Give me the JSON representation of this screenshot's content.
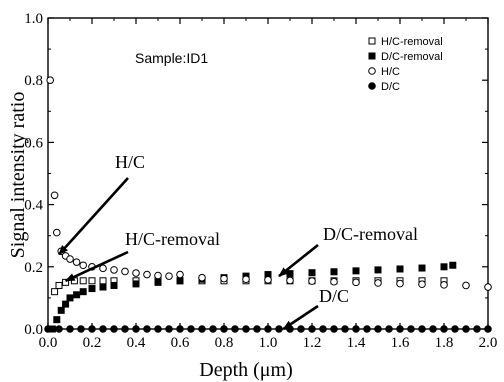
{
  "chart_data": {
    "type": "scatter",
    "xlabel": "Depth (μm)",
    "ylabel": "Signal intensity ratio",
    "xlim": [
      0.0,
      2.0
    ],
    "ylim": [
      0.0,
      1.0
    ],
    "xticks": [
      "0.0",
      "0.2",
      "0.4",
      "0.6",
      "0.8",
      "1.0",
      "1.2",
      "1.4",
      "1.6",
      "1.8",
      "2.0"
    ],
    "yticks": [
      "0.0",
      "0.2",
      "0.4",
      "0.6",
      "0.8",
      "1.0"
    ],
    "grid": false,
    "legend_position": "top-right",
    "sample_label": "Sample:ID1",
    "series": [
      {
        "name": "H/C-removal",
        "marker": "open-square",
        "x": [
          0.03,
          0.05,
          0.08,
          0.12,
          0.16,
          0.2,
          0.25,
          0.3,
          0.4,
          0.5,
          0.6,
          0.7,
          0.8,
          0.9,
          1.0,
          1.1,
          1.2,
          1.3,
          1.4,
          1.5,
          1.6,
          1.7,
          1.8
        ],
        "y": [
          0.12,
          0.14,
          0.15,
          0.155,
          0.155,
          0.155,
          0.155,
          0.155,
          0.155,
          0.155,
          0.155,
          0.155,
          0.155,
          0.155,
          0.155,
          0.155,
          0.155,
          0.155,
          0.155,
          0.155,
          0.155,
          0.155,
          0.155
        ]
      },
      {
        "name": "D/C-removal",
        "marker": "filled-square",
        "x": [
          0.02,
          0.04,
          0.06,
          0.08,
          0.1,
          0.13,
          0.16,
          0.2,
          0.25,
          0.3,
          0.4,
          0.5,
          0.6,
          0.7,
          0.8,
          0.9,
          1.0,
          1.1,
          1.2,
          1.3,
          1.4,
          1.5,
          1.6,
          1.7,
          1.8,
          1.84
        ],
        "y": [
          0.0,
          0.03,
          0.06,
          0.08,
          0.1,
          0.11,
          0.12,
          0.13,
          0.135,
          0.14,
          0.145,
          0.15,
          0.155,
          0.16,
          0.165,
          0.17,
          0.175,
          0.178,
          0.181,
          0.184,
          0.187,
          0.19,
          0.193,
          0.196,
          0.2,
          0.205
        ]
      },
      {
        "name": "H/C",
        "marker": "open-circle",
        "x": [
          0.01,
          0.03,
          0.04,
          0.06,
          0.08,
          0.1,
          0.13,
          0.16,
          0.2,
          0.25,
          0.3,
          0.35,
          0.4,
          0.45,
          0.5,
          0.55,
          0.6,
          0.7,
          0.8,
          0.9,
          1.0,
          1.1,
          1.2,
          1.3,
          1.4,
          1.5,
          1.6,
          1.7,
          1.8,
          1.9,
          2.0
        ],
        "y": [
          0.8,
          0.43,
          0.31,
          0.25,
          0.235,
          0.225,
          0.215,
          0.205,
          0.2,
          0.195,
          0.19,
          0.185,
          0.18,
          0.175,
          0.172,
          0.17,
          0.175,
          0.165,
          0.162,
          0.16,
          0.158,
          0.156,
          0.154,
          0.152,
          0.15,
          0.148,
          0.146,
          0.144,
          0.142,
          0.14,
          0.135
        ]
      },
      {
        "name": "D/C",
        "marker": "filled-circle",
        "x": [
          0.0,
          0.05,
          0.1,
          0.15,
          0.2,
          0.25,
          0.3,
          0.35,
          0.4,
          0.45,
          0.5,
          0.55,
          0.6,
          0.65,
          0.7,
          0.75,
          0.8,
          0.85,
          0.9,
          0.95,
          1.0,
          1.05,
          1.1,
          1.15,
          1.2,
          1.25,
          1.3,
          1.35,
          1.4,
          1.45,
          1.5,
          1.55,
          1.6,
          1.65,
          1.7,
          1.75,
          1.8,
          1.85,
          1.9,
          1.95,
          2.0
        ],
        "y": [
          0.0,
          0.0,
          0.0,
          0.0,
          0.0,
          0.0,
          0.0,
          0.0,
          0.0,
          0.0,
          0.0,
          0.0,
          0.0,
          0.0,
          0.0,
          0.0,
          0.0,
          0.0,
          0.0,
          0.0,
          0.0,
          0.0,
          0.0,
          0.0,
          0.0,
          0.0,
          0.0,
          0.0,
          0.0,
          0.0,
          0.0,
          0.0,
          0.0,
          0.0,
          0.0,
          0.0,
          0.0,
          0.0,
          0.0,
          0.0,
          0.0
        ]
      }
    ],
    "annotations": [
      {
        "text": "H/C",
        "target_x": 0.05,
        "target_y": 0.24
      },
      {
        "text": "H/C-removal",
        "target_x": 0.08,
        "target_y": 0.155
      },
      {
        "text": "D/C-removal",
        "target_x": 1.05,
        "target_y": 0.17
      },
      {
        "text": "D/C",
        "target_x": 1.07,
        "target_y": 0.0
      }
    ]
  }
}
